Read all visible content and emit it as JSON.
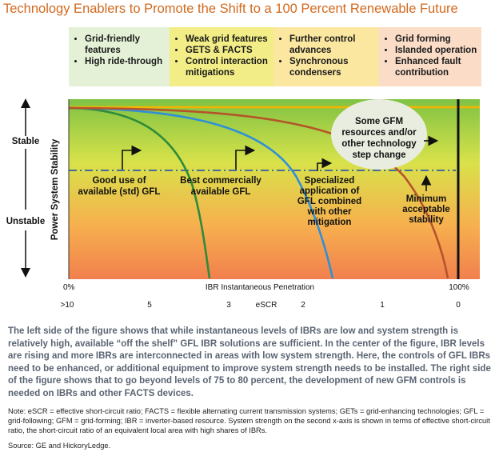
{
  "title": "Technology Enablers to Promote the Shift to a 100 Percent Renewable Future",
  "feature_boxes": [
    {
      "color": "#e4f1d6",
      "items": [
        "Grid-friendly features",
        "High ride-through"
      ]
    },
    {
      "color": "#f2ed86",
      "items": [
        "Weak grid features",
        "GETS & FACTS",
        "Control interaction mitigations"
      ]
    },
    {
      "color": "#fbe7a0",
      "items": [
        "Further control advances",
        "Synchronous condensers"
      ]
    },
    {
      "color": "#fadcc7",
      "items": [
        "Grid forming",
        "Islanded operation",
        "Enhanced fault contribution"
      ]
    }
  ],
  "diagram": {
    "y_label": "Power System Stability",
    "stable_label": "Stable",
    "unstable_label": "Unstable",
    "x_label": "IBR Instantaneous Penetration",
    "x_left": "0%",
    "x_right": "100%",
    "scr_label": "eSCR",
    "scr_ticks": [
      ">10",
      "5",
      "3",
      "2",
      "1",
      "0"
    ],
    "bubble_lines": [
      "Some GFM",
      "resources and/or",
      "other technology",
      "step change"
    ],
    "curve_labels": [
      {
        "name": "good-use-label",
        "lines": [
          "Good use of",
          "available (std) GFL"
        ]
      },
      {
        "name": "best-commercial-label",
        "lines": [
          "Best commercially",
          "available GFL"
        ]
      },
      {
        "name": "specialized-label",
        "lines": [
          "Specialized",
          "application of",
          "GFL combined",
          "with other",
          "mitigation"
        ]
      },
      {
        "name": "min-stability-label",
        "lines": [
          "Minimum",
          "acceptable",
          "stability"
        ]
      }
    ],
    "colors": {
      "green_curve": "#2e8b3a",
      "blue_curve": "#2f8fd8",
      "brown_curve": "#b5542a",
      "threshold": "#2b5ca8",
      "top_line": "#f5b400"
    }
  },
  "paragraph": "The left side of the figure shows that while instantaneous levels of IBRs are low and system strength is relatively high, available “off the shelf” GFL IBR solutions are sufficient. In the center of the figure, IBR levels are rising and more IBRs are interconnected in areas with low system strength. Here, the controls of GFL IBRs need to be enhanced, or additional equipment to improve system strength needs to be installed. The right side of the figure shows that to go beyond levels of 75 to 80 percent, the development of new GFM controls is needed on IBRs and other FACTS devices.",
  "note": "Note: eSCR = effective short-circuit ratio; FACTS = flexible alternating current transmission systems; GETs = grid-enhancing technologies; GFL = grid-following; GFM = grid-forming; IBR = inverter-based resource. System strength on the second x-axis is shown in terms of effective short-circuit ratio, the short-circuit ratio of an equivalent local area with high shares of IBRs.",
  "source": "Source: GE and HickoryLedge."
}
